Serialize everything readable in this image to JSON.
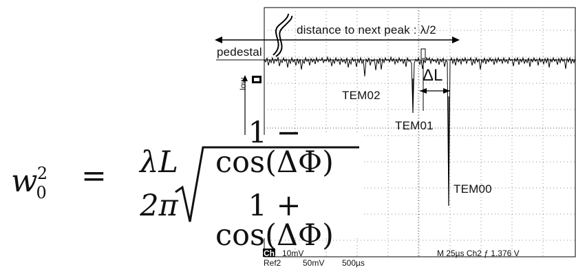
{
  "annotations": {
    "distance": "distance to next peak : λ/2",
    "pedestal": "pedestal",
    "delta_l": "ΔL",
    "tem02": "TEM02",
    "tem01": "TEM01",
    "tem00": "TEM00",
    "low": "low"
  },
  "scope_status": {
    "ch1": "Ch1",
    "ch1_scale": "10mV",
    "ref2": "Ref2",
    "ref2_scale": "50mV",
    "ref2_time": "500µs",
    "time_base": "M  25µs  Ch2  ƒ  1.376 V"
  },
  "formula": {
    "lhs_symbol": "w",
    "lhs_subscript": "0",
    "lhs_superscript": "2",
    "equals": "=",
    "outer_numerator": "λL",
    "outer_denominator": "2π",
    "inner_numerator": "1 − cos(ΔΦ)",
    "inner_denominator": "1 + cos(ΔΦ)"
  }
}
